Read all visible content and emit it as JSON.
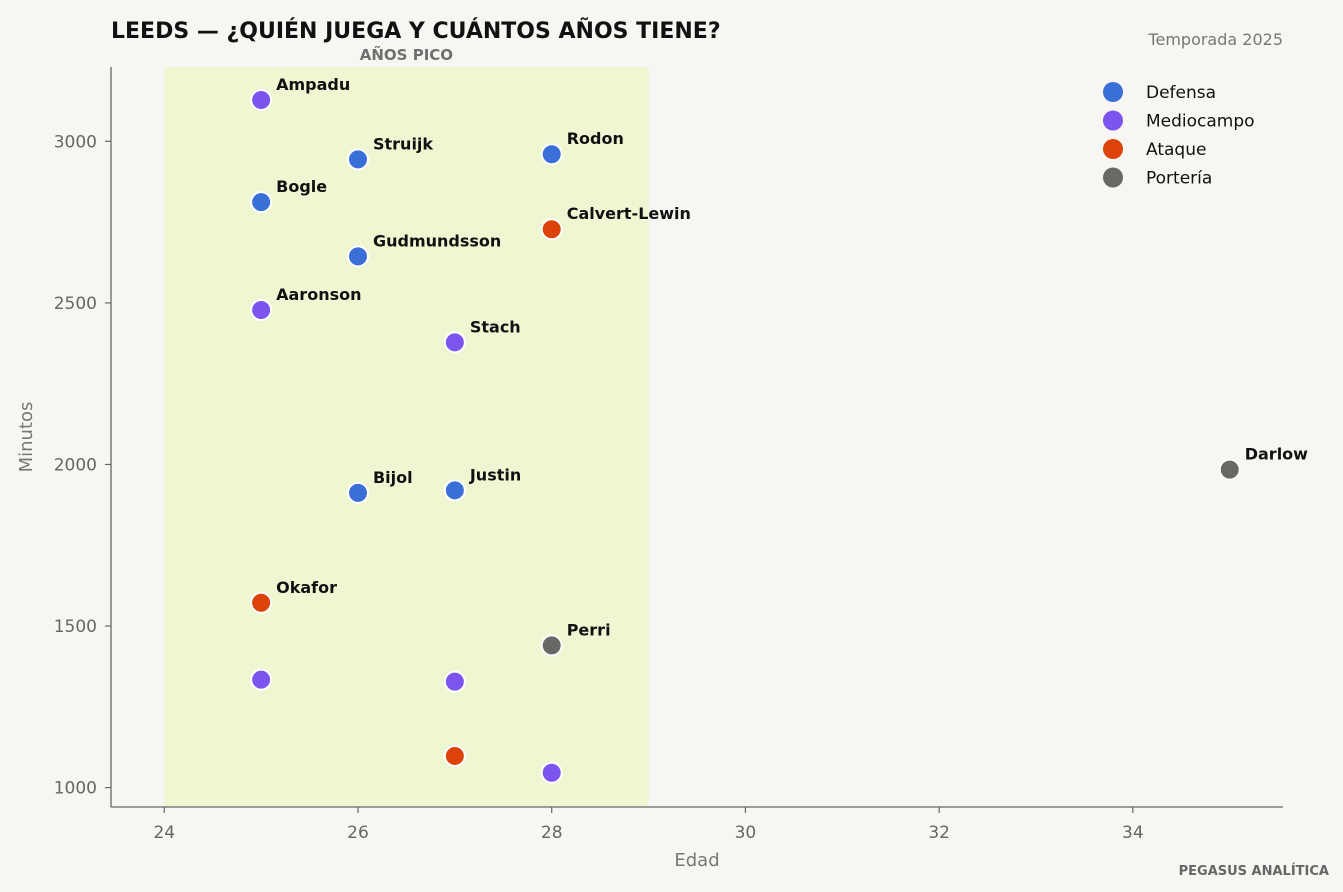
{
  "header": {
    "title": "LEEDS — ¿QUIÉN JUEGA Y CUÁNTOS AÑOS TIENE?",
    "season": "Temporada 2025"
  },
  "footer": {
    "credit": "PEGASUS ANALÍTICA"
  },
  "colors": {
    "background": "#f7f6f2",
    "peak_band": "#eef7d2",
    "axis": "#666666",
    "Defensa": "#3b6fd8",
    "Mediocampo": "#7b55ee",
    "Ataque": "#dd4209",
    "Portería": "#686864"
  },
  "chart_data": {
    "type": "scatter",
    "title": "LEEDS — ¿QUIÉN JUEGA Y CUÁNTOS AÑOS TIENE?",
    "subtitle": "Temporada 2025",
    "xlabel": "Edad",
    "ylabel": "Minutos",
    "xlim": [
      23.45,
      35.55
    ],
    "ylim": [
      940,
      3230
    ],
    "xticks": [
      24,
      26,
      28,
      30,
      32,
      34
    ],
    "yticks": [
      1000,
      1500,
      2000,
      2500,
      3000
    ],
    "grid": false,
    "legend_position": "top-right",
    "annotations": [
      {
        "label": "AÑOS PICO",
        "x_range": [
          24,
          29
        ]
      }
    ],
    "legend": [
      "Defensa",
      "Mediocampo",
      "Ataque",
      "Portería"
    ],
    "points": [
      {
        "name": "Ampadu",
        "x": 25,
        "y": 3128,
        "group": "Mediocampo"
      },
      {
        "name": "Struijk",
        "x": 26,
        "y": 2944,
        "group": "Defensa"
      },
      {
        "name": "Rodon",
        "x": 28,
        "y": 2960,
        "group": "Defensa"
      },
      {
        "name": "Bogle",
        "x": 25,
        "y": 2812,
        "group": "Defensa"
      },
      {
        "name": "Calvert-Lewin",
        "x": 28,
        "y": 2728,
        "group": "Ataque"
      },
      {
        "name": "Gudmundsson",
        "x": 26,
        "y": 2644,
        "group": "Defensa"
      },
      {
        "name": "Aaronson",
        "x": 25,
        "y": 2478,
        "group": "Mediocampo"
      },
      {
        "name": "Stach",
        "x": 27,
        "y": 2378,
        "group": "Mediocampo"
      },
      {
        "name": "Darlow",
        "x": 35,
        "y": 1984,
        "group": "Portería"
      },
      {
        "name": "Bijol",
        "x": 26,
        "y": 1912,
        "group": "Defensa"
      },
      {
        "name": "Justin",
        "x": 27,
        "y": 1920,
        "group": "Defensa"
      },
      {
        "name": "Okafor",
        "x": 25,
        "y": 1572,
        "group": "Ataque"
      },
      {
        "name": "Perri",
        "x": 28,
        "y": 1440,
        "group": "Portería"
      },
      {
        "name": "",
        "x": 25,
        "y": 1334,
        "group": "Mediocampo"
      },
      {
        "name": "",
        "x": 27,
        "y": 1328,
        "group": "Mediocampo"
      },
      {
        "name": "",
        "x": 27,
        "y": 1098,
        "group": "Ataque"
      },
      {
        "name": "",
        "x": 28,
        "y": 1046,
        "group": "Mediocampo"
      }
    ]
  }
}
